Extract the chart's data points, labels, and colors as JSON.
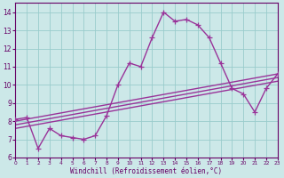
{
  "title": "",
  "xlabel": "Windchill (Refroidissement éolien,°C)",
  "ylabel": "",
  "bg_color": "#cce8e8",
  "grid_color": "#99cccc",
  "line_color": "#993399",
  "xlim": [
    0,
    23
  ],
  "ylim": [
    6,
    14.5
  ],
  "xticks": [
    0,
    1,
    2,
    3,
    4,
    5,
    6,
    7,
    8,
    9,
    10,
    11,
    12,
    13,
    14,
    15,
    16,
    17,
    18,
    19,
    20,
    21,
    22,
    23
  ],
  "yticks": [
    6,
    7,
    8,
    9,
    10,
    11,
    12,
    13,
    14
  ],
  "lines": [
    {
      "x": [
        0,
        1,
        2,
        3,
        4,
        5,
        6,
        7,
        8,
        9,
        10,
        11,
        12,
        13,
        14,
        15,
        16,
        17,
        18,
        19,
        20,
        21,
        22,
        23
      ],
      "y": [
        8.1,
        8.2,
        6.5,
        7.6,
        7.2,
        7.1,
        7.0,
        7.2,
        8.3,
        10.0,
        11.2,
        11.0,
        12.6,
        14.0,
        13.5,
        13.6,
        13.3,
        12.6,
        11.2,
        9.8,
        9.5,
        8.5,
        9.8,
        10.6
      ],
      "has_markers": true
    },
    {
      "x": [
        0,
        23
      ],
      "y": [
        8.0,
        10.6
      ],
      "has_markers": false
    },
    {
      "x": [
        0,
        23
      ],
      "y": [
        7.8,
        10.4
      ],
      "has_markers": false
    },
    {
      "x": [
        0,
        23
      ],
      "y": [
        7.6,
        10.2
      ],
      "has_markers": false
    }
  ],
  "marker": "+",
  "markersize": 4,
  "linewidth": 1.0
}
